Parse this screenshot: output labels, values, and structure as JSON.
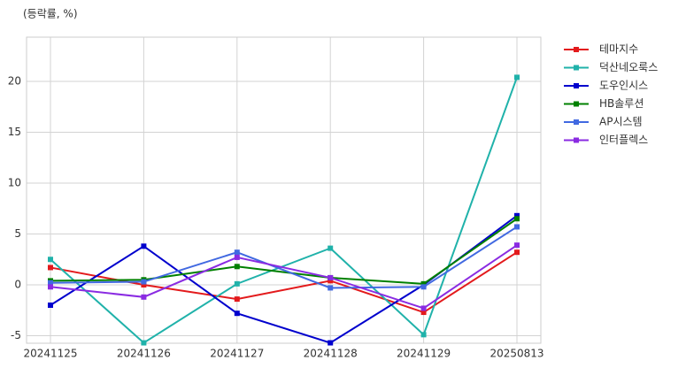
{
  "chart_data": {
    "type": "line",
    "y_label": "(등락률, %)",
    "categories": [
      "20241125",
      "20241126",
      "20241127",
      "20241128",
      "20241129",
      "20250813"
    ],
    "series": [
      {
        "name": "테마지수",
        "color": "#e31a1c",
        "values": [
          1.7,
          0.0,
          -1.4,
          0.4,
          -2.7,
          3.2
        ]
      },
      {
        "name": "덕산네오룩스",
        "color": "#20b2aa",
        "values": [
          2.5,
          -5.7,
          0.1,
          3.6,
          -4.9,
          20.4
        ]
      },
      {
        "name": "도우인시스",
        "color": "#0000cd",
        "values": [
          -2.0,
          3.8,
          -2.8,
          -5.7,
          0.0,
          6.8
        ]
      },
      {
        "name": "HB솔루션",
        "color": "#008000",
        "values": [
          0.4,
          0.5,
          1.8,
          0.7,
          0.1,
          6.5
        ]
      },
      {
        "name": "AP시스템",
        "color": "#4169e1",
        "values": [
          0.2,
          0.3,
          3.2,
          -0.3,
          -0.2,
          5.7
        ]
      },
      {
        "name": "인터플렉스",
        "color": "#8a2be2",
        "values": [
          -0.2,
          -1.2,
          2.7,
          0.7,
          -2.3,
          3.9
        ]
      }
    ],
    "ylim": [
      -5.74,
      24.35
    ],
    "yticks": [
      -5,
      0,
      5,
      10,
      15,
      20
    ],
    "grid": true,
    "legend": "right"
  }
}
